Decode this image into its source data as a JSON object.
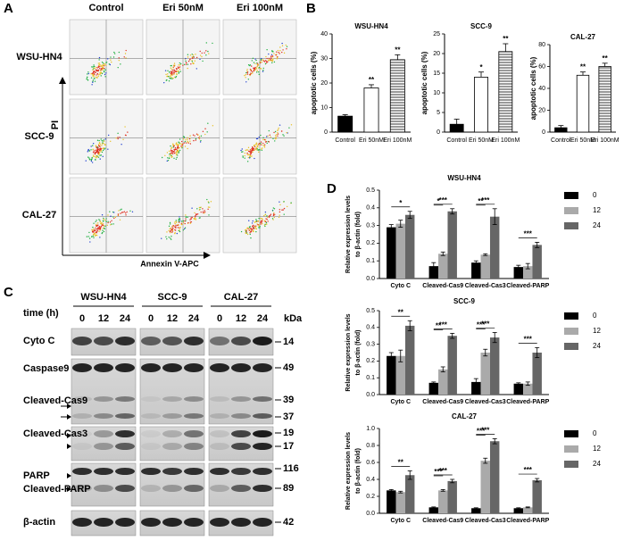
{
  "panel_labels": [
    "A",
    "B",
    "C",
    "D"
  ],
  "flow": {
    "columns": [
      "Control",
      "Eri 50nM",
      "Eri 100nM"
    ],
    "rows": [
      "WSU-HN4",
      "SCC-9",
      "CAL-27"
    ],
    "y_label": "PI",
    "x_label": "Annexin V-APC"
  },
  "blot": {
    "cell_lines": [
      "WSU-HN4",
      "SCC-9",
      "CAL-27"
    ],
    "time_label": "time (h)",
    "times": [
      "0",
      "12",
      "24"
    ],
    "kda_label": "kDa",
    "rows": [
      {
        "label": "Cyto C",
        "kda": [
          "14"
        ]
      },
      {
        "label": "Caspase9",
        "kda": [
          "49"
        ]
      },
      {
        "label": "Cleaved-Cas9",
        "kda": [
          "39",
          "37"
        ]
      },
      {
        "label": "Cleaved-Cas3",
        "kda": [
          "19",
          "17"
        ]
      },
      {
        "label": "PARP",
        "kda": [
          "116"
        ]
      },
      {
        "label": "Cleaved-PARP",
        "kda": [
          "89"
        ]
      },
      {
        "label": "β-actin",
        "kda": [
          "42"
        ]
      }
    ]
  },
  "chart_data": [
    {
      "type": "bar",
      "title": "WSU-HN4",
      "ylabel": [
        "apoptotic cells (%)"
      ],
      "categories": [
        "Control",
        "Eri 50nM",
        "Eri 100nM"
      ],
      "values": [
        6.5,
        18,
        29.5
      ],
      "errors": [
        0.6,
        1.3,
        2
      ],
      "sig_labels": [
        null,
        "**",
        "**"
      ],
      "colors": [
        "#000000",
        "#ffffff",
        "#ffffff"
      ],
      "patterns": [
        "solid",
        "solid",
        "horizontal-lines"
      ],
      "ylim": [
        0,
        40
      ],
      "yticks": [
        0,
        10,
        20,
        30,
        40
      ]
    },
    {
      "type": "bar",
      "title": "SCC-9",
      "ylabel": [
        "apoptotic cells (%)"
      ],
      "categories": [
        "Control",
        "Eri 50nM",
        "Eri 100nM"
      ],
      "values": [
        2,
        14,
        20.5
      ],
      "errors": [
        1.3,
        1.3,
        2
      ],
      "sig_labels": [
        null,
        "*",
        "**"
      ],
      "colors": [
        "#000000",
        "#ffffff",
        "#ffffff"
      ],
      "patterns": [
        "solid",
        "solid",
        "horizontal-lines"
      ],
      "ylim": [
        0,
        25
      ],
      "yticks": [
        0,
        5,
        10,
        15,
        20,
        25
      ]
    },
    {
      "type": "bar",
      "title": "CAL-27",
      "ylabel": [
        "apoptotic cells (%)"
      ],
      "categories": [
        "Control",
        "Eri 50nM",
        "Eri 100nM"
      ],
      "values": [
        4,
        52,
        60
      ],
      "errors": [
        2,
        3,
        3
      ],
      "sig_labels": [
        null,
        "**",
        "**"
      ],
      "colors": [
        "#000000",
        "#ffffff",
        "#ffffff"
      ],
      "patterns": [
        "solid",
        "solid",
        "horizontal-lines"
      ],
      "ylim": [
        0,
        80
      ],
      "yticks": [
        0,
        20,
        40,
        60,
        80
      ]
    },
    {
      "type": "grouped_bar",
      "title": "WSU-HN4",
      "ylabel": [
        "Relative expression levels",
        "to β-actin (fold)"
      ],
      "categories": [
        "Cyto C",
        "Cleaved-Cas9",
        "Cleaved-Cas3",
        "Cleaved-PARP"
      ],
      "series": [
        {
          "name": "0",
          "color": "#000000",
          "values": [
            0.29,
            0.07,
            0.09,
            0.065
          ],
          "errors": [
            0.015,
            0.02,
            0.01,
            0.01
          ]
        },
        {
          "name": "12",
          "color": "#aaaaaa",
          "values": [
            0.31,
            0.14,
            0.135,
            0.07
          ],
          "errors": [
            0.02,
            0.01,
            0.005,
            0.015
          ],
          "sig_labels": [
            null,
            "*",
            "**",
            null
          ]
        },
        {
          "name": "24",
          "color": "#666666",
          "values": [
            0.36,
            0.38,
            0.35,
            0.19
          ],
          "errors": [
            0.02,
            0.015,
            0.045,
            0.015
          ],
          "sig_labels": [
            "*",
            "***",
            "***",
            "***"
          ]
        }
      ],
      "ylim": [
        0,
        0.5
      ],
      "yticks": [
        {
          "value": 0,
          "label": "0.0"
        },
        0.1,
        0.2,
        0.3,
        0.4,
        0.5
      ]
    },
    {
      "type": "grouped_bar",
      "title": "SCC-9",
      "ylabel": [
        "Relative expression levels",
        "to β-actin (fold)"
      ],
      "categories": [
        "Cyto C",
        "Cleaved-Cas9",
        "Cleaved-Cas3",
        "Cleaved-PARP"
      ],
      "series": [
        {
          "name": "0",
          "color": "#000000",
          "values": [
            0.23,
            0.07,
            0.075,
            0.065
          ],
          "errors": [
            0.02,
            0.005,
            0.02,
            0.005
          ]
        },
        {
          "name": "12",
          "color": "#aaaaaa",
          "values": [
            0.23,
            0.15,
            0.25,
            0.065
          ],
          "errors": [
            0.035,
            0.015,
            0.02,
            0.01
          ],
          "sig_labels": [
            null,
            "**",
            "***",
            null
          ]
        },
        {
          "name": "24",
          "color": "#666666",
          "values": [
            0.41,
            0.35,
            0.34,
            0.25
          ],
          "errors": [
            0.03,
            0.015,
            0.03,
            0.03
          ],
          "sig_labels": [
            "**",
            "***",
            "***",
            "***"
          ]
        }
      ],
      "ylim": [
        0,
        0.5
      ],
      "yticks": [
        {
          "value": 0,
          "label": "0.0"
        },
        0.1,
        0.2,
        0.3,
        0.4,
        0.5
      ]
    },
    {
      "type": "grouped_bar",
      "title": "CAL-27",
      "ylabel": [
        "Relative expression levels",
        "to β-actin (fold)"
      ],
      "categories": [
        "Cyto C",
        "Cleaved-Cas9",
        "Cleaved-Cas3",
        "Cleaved-PARP"
      ],
      "series": [
        {
          "name": "0",
          "color": "#000000",
          "values": [
            0.27,
            0.07,
            0.06,
            0.06
          ],
          "errors": [
            0.01,
            0.005,
            0.005,
            0.005
          ]
        },
        {
          "name": "12",
          "color": "#aaaaaa",
          "values": [
            0.25,
            0.27,
            0.62,
            0.07
          ],
          "errors": [
            0.01,
            0.01,
            0.03,
            0.005
          ],
          "sig_labels": [
            null,
            "***",
            "***",
            null
          ]
        },
        {
          "name": "24",
          "color": "#666666",
          "values": [
            0.45,
            0.38,
            0.85,
            0.39
          ],
          "errors": [
            0.05,
            0.02,
            0.03,
            0.02
          ],
          "sig_labels": [
            "**",
            "***",
            "***",
            "***"
          ]
        }
      ],
      "ylim": [
        0,
        1.0
      ],
      "yticks": [
        {
          "value": 0,
          "label": "0.0"
        },
        0.2,
        0.4,
        0.6,
        0.8,
        {
          "value": 1,
          "label": "1.0"
        }
      ]
    }
  ]
}
